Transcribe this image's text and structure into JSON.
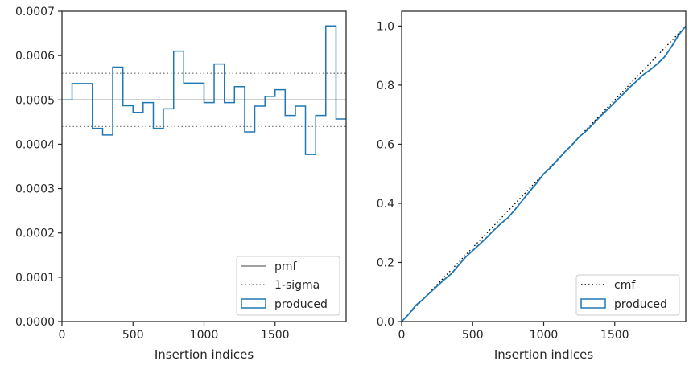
{
  "chart_data": [
    {
      "type": "step",
      "xlabel": "Insertion indices",
      "ylabel": "",
      "xlim": [
        0,
        2000
      ],
      "ylim": [
        0,
        0.0007
      ],
      "xticks": [
        0,
        500,
        1000,
        1500
      ],
      "xtick_labels": [
        "0",
        "500",
        "1000",
        "1500"
      ],
      "yticks": [
        0,
        0.0001,
        0.0002,
        0.0003,
        0.0004,
        0.0005,
        0.0006,
        0.0007
      ],
      "ytick_labels": [
        "0.0000",
        "0.0001",
        "0.0002",
        "0.0003",
        "0.0004",
        "0.0005",
        "0.0006",
        "0.0007"
      ],
      "grid": false,
      "legend_position": "lower-right",
      "pmf": 0.0005,
      "sigma_band": [
        0.00044,
        0.00056
      ],
      "bin_edges": [
        0,
        71,
        143,
        214,
        286,
        357,
        429,
        500,
        571,
        643,
        714,
        786,
        857,
        929,
        1000,
        1071,
        1143,
        1214,
        1286,
        1357,
        1429,
        1500,
        1571,
        1643,
        1714,
        1786,
        1857,
        1929,
        2000
      ],
      "produced": [
        0.0005,
        0.000537,
        0.000537,
        0.000436,
        0.000421,
        0.000574,
        0.000487,
        0.000472,
        0.000494,
        0.000436,
        0.00048,
        0.00061,
        0.000538,
        0.000538,
        0.000494,
        0.000581,
        0.000494,
        0.00053,
        0.000428,
        0.000486,
        0.000508,
        0.000523,
        0.000465,
        0.000486,
        0.000377,
        0.000465,
        0.000667,
        0.000457
      ],
      "series": [
        {
          "name": "pmf",
          "color": "#808080",
          "style": "solid"
        },
        {
          "name": "1-sigma",
          "color": "#808080",
          "style": "dotted"
        },
        {
          "name": "produced",
          "color": "#1f77b4",
          "style": "step"
        }
      ]
    },
    {
      "type": "line",
      "xlabel": "Insertion indices",
      "ylabel": "",
      "xlim": [
        0,
        2000
      ],
      "ylim": [
        0,
        1.05
      ],
      "xticks": [
        0,
        500,
        1000,
        1500
      ],
      "xtick_labels": [
        "0",
        "500",
        "1000",
        "1500"
      ],
      "yticks": [
        0,
        0.2,
        0.4,
        0.6,
        0.8,
        1.0
      ],
      "ytick_labels": [
        "0.0",
        "0.2",
        "0.4",
        "0.6",
        "0.8",
        "1.0"
      ],
      "grid": false,
      "legend_position": "lower-right",
      "cmf": {
        "x": [
          0,
          2000
        ],
        "y": [
          0,
          1.0
        ]
      },
      "produced": {
        "x": [
          0,
          50,
          100,
          150,
          200,
          250,
          300,
          350,
          400,
          450,
          500,
          550,
          600,
          650,
          700,
          750,
          800,
          850,
          900,
          950,
          1000,
          1050,
          1100,
          1150,
          1200,
          1250,
          1300,
          1350,
          1400,
          1450,
          1500,
          1550,
          1600,
          1650,
          1700,
          1750,
          1800,
          1850,
          1900,
          1950,
          2000
        ],
        "y": [
          0,
          0.025,
          0.055,
          0.075,
          0.098,
          0.12,
          0.142,
          0.162,
          0.19,
          0.218,
          0.24,
          0.262,
          0.285,
          0.31,
          0.332,
          0.352,
          0.38,
          0.41,
          0.44,
          0.468,
          0.5,
          0.522,
          0.548,
          0.575,
          0.598,
          0.625,
          0.645,
          0.67,
          0.695,
          0.718,
          0.742,
          0.765,
          0.79,
          0.812,
          0.835,
          0.852,
          0.872,
          0.895,
          0.93,
          0.97,
          1.0
        ]
      },
      "series": [
        {
          "name": "cmf",
          "color": "#000000",
          "style": "dotted"
        },
        {
          "name": "produced",
          "color": "#1f77b4",
          "style": "solid"
        }
      ]
    }
  ]
}
